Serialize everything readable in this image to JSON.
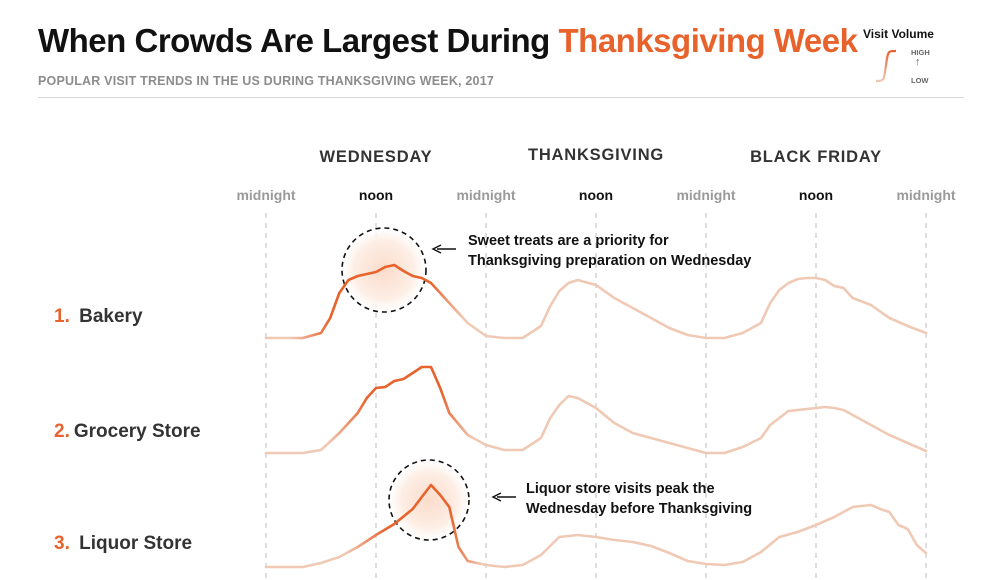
{
  "header": {
    "title_main": "When Crowds Are Largest During ",
    "title_accent": "Thanksgiving Week",
    "subtitle": "POPULAR VISIT TRENDS IN THE US DURING THANKSGIVING WEEK, 2017"
  },
  "legend": {
    "title": "Visit Volume",
    "high": "HIGH",
    "low": "LOW",
    "arrow": "↑"
  },
  "colors": {
    "accent": "#e8622c",
    "line_faint": "#f0c9b5",
    "gridline": "#bdbdbd"
  },
  "chart_data": {
    "type": "line",
    "title": "When Crowds Are Largest During Thanksgiving Week",
    "subtitle": "POPULAR VISIT TRENDS IN THE US DURING THANKSGIVING WEEK, 2017",
    "days": [
      "WEDNESDAY",
      "THANKSGIVING",
      "BLACK FRIDAY"
    ],
    "ticks": [
      "midnight",
      "noon",
      "midnight",
      "noon",
      "midnight",
      "noon",
      "midnight"
    ],
    "x_unit": "hours since Wednesday midnight",
    "xlim": [
      0,
      72
    ],
    "ylim": [
      0,
      1
    ],
    "grid": "dashed vertical at each midnight and noon",
    "series": [
      {
        "rank": "1.",
        "name": "Bakery",
        "x": [
          0,
          4,
          6,
          7,
          8,
          9,
          10,
          12,
          13,
          14,
          15,
          16,
          17,
          18,
          19,
          20,
          22,
          24,
          26,
          28,
          30,
          31,
          32,
          33,
          34,
          36,
          38,
          40,
          42,
          44,
          46,
          48,
          50,
          52,
          54,
          55,
          56,
          57,
          58,
          59,
          60,
          61,
          62,
          63,
          64,
          66,
          68,
          70,
          72
        ],
        "y": [
          0,
          0,
          0.05,
          0.2,
          0.45,
          0.58,
          0.62,
          0.66,
          0.71,
          0.73,
          0.67,
          0.62,
          0.6,
          0.55,
          0.45,
          0.35,
          0.15,
          0.02,
          0,
          0,
          0.12,
          0.32,
          0.47,
          0.55,
          0.58,
          0.53,
          0.4,
          0.3,
          0.2,
          0.1,
          0.03,
          0,
          0,
          0.05,
          0.15,
          0.35,
          0.48,
          0.55,
          0.59,
          0.6,
          0.6,
          0.58,
          0.52,
          0.5,
          0.4,
          0.33,
          0.2,
          0.12,
          0.05
        ],
        "highlight_x": [
          7,
          18
        ]
      },
      {
        "rank": "2.",
        "name": "Grocery Store",
        "x": [
          0,
          4,
          6,
          8,
          10,
          11,
          12,
          13,
          14,
          15,
          16,
          17,
          18,
          19,
          20,
          22,
          24,
          26,
          28,
          30,
          31,
          32,
          33,
          34,
          36,
          38,
          40,
          42,
          44,
          46,
          48,
          50,
          52,
          54,
          55,
          56,
          57,
          58,
          59,
          60,
          61,
          62,
          63,
          64,
          66,
          68,
          70,
          72
        ],
        "y": [
          0,
          0,
          0.03,
          0.2,
          0.4,
          0.55,
          0.65,
          0.66,
          0.72,
          0.74,
          0.8,
          0.86,
          0.86,
          0.65,
          0.4,
          0.18,
          0.08,
          0.03,
          0.03,
          0.15,
          0.35,
          0.48,
          0.57,
          0.55,
          0.45,
          0.3,
          0.2,
          0.15,
          0.1,
          0.05,
          0,
          0,
          0.06,
          0.15,
          0.28,
          0.35,
          0.42,
          0.43,
          0.44,
          0.45,
          0.46,
          0.45,
          0.43,
          0.38,
          0.28,
          0.18,
          0.1,
          0.02
        ],
        "highlight_x": [
          11,
          19
        ]
      },
      {
        "rank": "3.",
        "name": "Liquor Store",
        "x": [
          0,
          4,
          6,
          8,
          10,
          12,
          14,
          16,
          17,
          18,
          19,
          20,
          21,
          22,
          24,
          26,
          28,
          30,
          32,
          34,
          36,
          38,
          40,
          42,
          44,
          46,
          48,
          50,
          52,
          54,
          56,
          58,
          60,
          62,
          64,
          66,
          67,
          68,
          69,
          70,
          71,
          72
        ],
        "y": [
          0,
          0,
          0.04,
          0.1,
          0.2,
          0.32,
          0.43,
          0.58,
          0.7,
          0.82,
          0.72,
          0.6,
          0.2,
          0.06,
          0.02,
          0,
          0.02,
          0.12,
          0.3,
          0.32,
          0.3,
          0.27,
          0.25,
          0.21,
          0.14,
          0.06,
          0.03,
          0.02,
          0.05,
          0.15,
          0.3,
          0.35,
          0.42,
          0.5,
          0.6,
          0.62,
          0.58,
          0.55,
          0.42,
          0.38,
          0.22,
          0.14
        ],
        "highlight_x": [
          13,
          20
        ]
      }
    ],
    "annotations": [
      {
        "series": "Bakery",
        "lines": [
          "Sweet treats are a priority for",
          "Thanksgiving preparation on Wednesday"
        ]
      },
      {
        "series": "Liquor Store",
        "lines": [
          "Liquor store visits peak the",
          "Wednesday before Thanksgiving"
        ]
      }
    ]
  }
}
